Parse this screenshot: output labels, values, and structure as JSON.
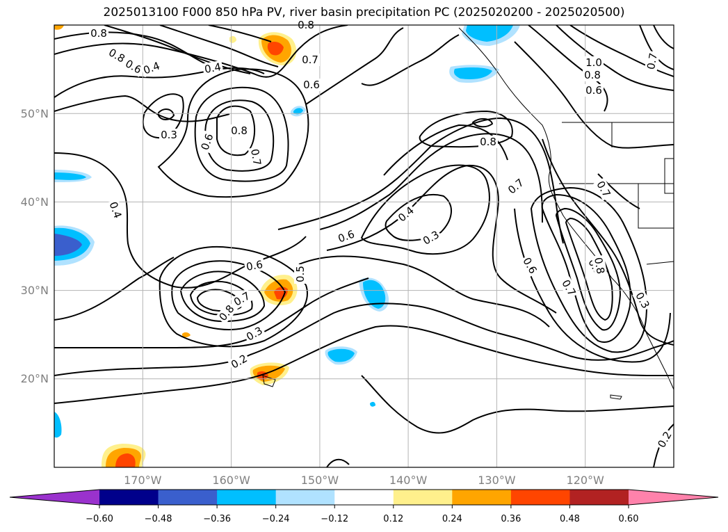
{
  "title": "2025013100 F000 850 hPa PV, river basin precipitation PC (2025020200 - 2025020500)",
  "map": {
    "lon_range": [
      -180,
      -110
    ],
    "lat_range": [
      10,
      60
    ],
    "lat_labels": [
      "20°N",
      "30°N",
      "40°N",
      "50°N"
    ],
    "lon_labels": [
      "170°W",
      "160°W",
      "150°W",
      "140°W",
      "130°W",
      "120°W"
    ],
    "grid": true
  },
  "contour_labels": [
    "0.8",
    "0.8",
    "0.6",
    "0.4",
    "0.4",
    "0.8",
    "0.7",
    "0.6",
    "0.3",
    "0.6",
    "0.8",
    "0.7",
    "1.0",
    "0.8",
    "0.6",
    "0.7",
    "0.8",
    "0.7",
    "0.7",
    "0.4",
    "0.3",
    "0.6",
    "0.4",
    "0.3",
    "0.6",
    "0.5",
    "0.7",
    "0.8",
    "0.3",
    "0.2",
    "0.6",
    "0.7",
    "0.8",
    "0.3",
    "0.2"
  ],
  "colorbar": {
    "colors": [
      "#9a32cd",
      "#00008b",
      "#3a5fcd",
      "#00bfff",
      "#b0e2ff",
      "#ffffff",
      "#fff08c",
      "#ffa500",
      "#ff4500",
      "#b22222",
      "#ff82ab"
    ],
    "ticks": [
      "−0.60",
      "−0.48",
      "−0.36",
      "−0.24",
      "−0.12",
      "0.12",
      "0.24",
      "0.36",
      "0.48",
      "0.60"
    ],
    "extend": "both"
  }
}
